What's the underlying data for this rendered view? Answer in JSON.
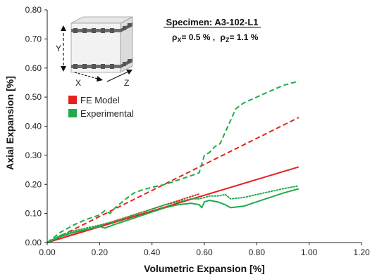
{
  "chart_data": {
    "type": "line",
    "title": "Specimen: A3-102-L1",
    "subtitle_parts": {
      "rho_x_symbol": "ρ",
      "rho_x_sub": "X",
      "rho_x_value": "= 0.5 % ,",
      "rho_z_symbol": "ρ",
      "rho_z_sub": "Z",
      "rho_z_value": "= 1.1 %"
    },
    "xlabel": "Volumetric Expansion [%]",
    "ylabel": "Axial Expansion [%]",
    "xlim": [
      0,
      1.2
    ],
    "ylim": [
      0,
      0.8
    ],
    "xticks": [
      "0.00",
      "0.20",
      "0.40",
      "0.60",
      "0.80",
      "1.00",
      "1.20"
    ],
    "yticks": [
      "0.00",
      "0.10",
      "0.20",
      "0.30",
      "0.40",
      "0.50",
      "0.60",
      "0.70",
      "0.80"
    ],
    "grid": false,
    "legend_position": "upper-left",
    "legend": [
      {
        "label": "FE Model",
        "color": "#e8211e"
      },
      {
        "label": "Experimental",
        "color": "#22a94b"
      }
    ],
    "inset_labels": {
      "y": "Y",
      "x": "X",
      "z": "Z"
    },
    "series": [
      {
        "group": "FE Model",
        "style": "dashed",
        "color": "#e8211e",
        "x": [
          0,
          0.96
        ],
        "y": [
          0,
          0.43
        ]
      },
      {
        "group": "FE Model",
        "style": "solid",
        "color": "#e8211e",
        "x": [
          0,
          0.96
        ],
        "y": [
          0,
          0.26
        ]
      },
      {
        "group": "FE Model",
        "style": "dotted",
        "color": "#e8211e",
        "x": [
          0,
          0.58
        ],
        "y": [
          0,
          0.167
        ]
      },
      {
        "group": "Experimental",
        "style": "dashed",
        "color": "#22a94b",
        "x": [
          0,
          0.05,
          0.1,
          0.15,
          0.2,
          0.22,
          0.24,
          0.26,
          0.28,
          0.3,
          0.33,
          0.36,
          0.4,
          0.45,
          0.5,
          0.55,
          0.58,
          0.6,
          0.62,
          0.64,
          0.66,
          0.68,
          0.7,
          0.72,
          0.75,
          0.8,
          0.85,
          0.9,
          0.96
        ],
        "y": [
          0,
          0.035,
          0.06,
          0.08,
          0.095,
          0.11,
          0.1,
          0.12,
          0.135,
          0.15,
          0.17,
          0.18,
          0.19,
          0.2,
          0.215,
          0.23,
          0.24,
          0.3,
          0.31,
          0.33,
          0.34,
          0.38,
          0.42,
          0.46,
          0.48,
          0.5,
          0.52,
          0.54,
          0.555
        ]
      },
      {
        "group": "Experimental",
        "style": "dotted",
        "color": "#22a94b",
        "x": [
          0,
          0.05,
          0.1,
          0.15,
          0.2,
          0.22,
          0.25,
          0.3,
          0.35,
          0.4,
          0.45,
          0.5,
          0.55,
          0.58,
          0.6,
          0.62,
          0.65,
          0.68,
          0.7,
          0.75,
          0.8,
          0.85,
          0.9,
          0.96
        ],
        "y": [
          0,
          0.025,
          0.04,
          0.05,
          0.06,
          0.065,
          0.07,
          0.085,
          0.1,
          0.115,
          0.13,
          0.14,
          0.15,
          0.15,
          0.155,
          0.16,
          0.16,
          0.165,
          0.15,
          0.155,
          0.165,
          0.175,
          0.185,
          0.195
        ]
      },
      {
        "group": "Experimental",
        "style": "solid",
        "color": "#22a94b",
        "x": [
          0,
          0.05,
          0.1,
          0.15,
          0.2,
          0.22,
          0.25,
          0.3,
          0.35,
          0.4,
          0.45,
          0.5,
          0.55,
          0.58,
          0.59,
          0.6,
          0.62,
          0.65,
          0.68,
          0.7,
          0.75,
          0.8,
          0.85,
          0.9,
          0.96
        ],
        "y": [
          0,
          0.02,
          0.035,
          0.045,
          0.055,
          0.05,
          0.06,
          0.075,
          0.09,
          0.105,
          0.12,
          0.13,
          0.135,
          0.13,
          0.12,
          0.14,
          0.145,
          0.14,
          0.13,
          0.12,
          0.125,
          0.14,
          0.155,
          0.17,
          0.185
        ]
      }
    ]
  }
}
